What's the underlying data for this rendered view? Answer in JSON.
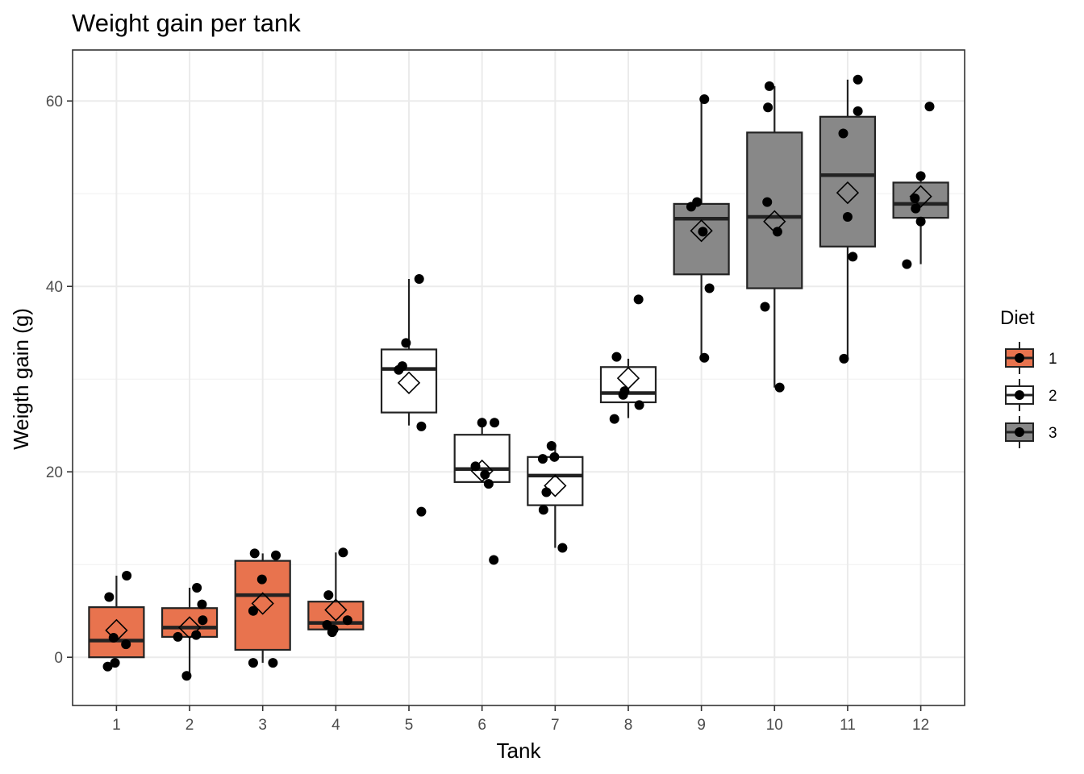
{
  "chart_data": {
    "type": "boxplot",
    "title": "Weight gain per tank",
    "xlabel": "Tank",
    "ylabel": "Weigth gain (g)",
    "ylim": [
      -5.2,
      65.5
    ],
    "yticks": [
      0,
      20,
      40,
      60
    ],
    "grid": true,
    "legend": {
      "title": "Diet",
      "position": "right",
      "entries": [
        {
          "label": "1",
          "fill": "#E8734E"
        },
        {
          "label": "2",
          "fill": "#FFFFFF"
        },
        {
          "label": "3",
          "fill": "#888888"
        }
      ]
    },
    "boxes": [
      {
        "tank": "1",
        "diet": "1",
        "lower": 0.0,
        "q1": 0.0,
        "median": 1.8,
        "q3": 5.4,
        "upper": 8.8,
        "mean": 2.9,
        "points": [
          [
            -0.12,
            -1.0
          ],
          [
            -0.02,
            -0.6
          ],
          [
            -0.04,
            2.1
          ],
          [
            0.13,
            1.4
          ],
          [
            0.14,
            8.8
          ],
          [
            -0.1,
            6.5
          ]
        ]
      },
      {
        "tank": "2",
        "diet": "1",
        "lower": -2.0,
        "q1": 2.2,
        "median": 3.2,
        "q3": 5.3,
        "upper": 7.5,
        "mean": 3.2,
        "points": [
          [
            -0.04,
            -2.0
          ],
          [
            -0.16,
            2.2
          ],
          [
            0.09,
            2.4
          ],
          [
            0.18,
            4.0
          ],
          [
            0.17,
            5.7
          ],
          [
            0.1,
            7.5
          ]
        ]
      },
      {
        "tank": "3",
        "diet": "1",
        "lower": -0.6,
        "q1": 0.8,
        "median": 6.7,
        "q3": 10.4,
        "upper": 11.2,
        "mean": 5.8,
        "points": [
          [
            -0.13,
            -0.6
          ],
          [
            0.14,
            -0.6
          ],
          [
            -0.13,
            5.0
          ],
          [
            -0.01,
            8.4
          ],
          [
            -0.11,
            11.2
          ],
          [
            0.18,
            11.0
          ]
        ]
      },
      {
        "tank": "4",
        "diet": "1",
        "lower": 2.7,
        "q1": 3.0,
        "median": 3.7,
        "q3": 6.0,
        "upper": 11.3,
        "mean": 5.1,
        "points": [
          [
            -0.05,
            2.7
          ],
          [
            -0.03,
            3.0
          ],
          [
            -0.12,
            3.5
          ],
          [
            0.16,
            4.0
          ],
          [
            -0.1,
            6.7
          ],
          [
            0.1,
            11.3
          ]
        ]
      },
      {
        "tank": "5",
        "diet": "2",
        "lower": 25.0,
        "q1": 26.4,
        "median": 31.1,
        "q3": 33.2,
        "upper": 40.8,
        "mean": 29.6,
        "points": [
          [
            0.17,
            15.7
          ],
          [
            0.17,
            24.9
          ],
          [
            -0.14,
            31.0
          ],
          [
            -0.09,
            31.4
          ],
          [
            -0.04,
            33.9
          ],
          [
            0.14,
            40.8
          ]
        ]
      },
      {
        "tank": "6",
        "diet": "2",
        "lower": 18.9,
        "q1": 18.9,
        "median": 20.3,
        "q3": 24.0,
        "upper": 25.3,
        "mean": 20.1,
        "points": [
          [
            0.16,
            10.5
          ],
          [
            0.09,
            18.7
          ],
          [
            0.04,
            19.7
          ],
          [
            -0.09,
            20.6
          ],
          [
            0.0,
            25.3
          ],
          [
            0.17,
            25.3
          ]
        ]
      },
      {
        "tank": "7",
        "diet": "2",
        "lower": 11.8,
        "q1": 16.4,
        "median": 19.6,
        "q3": 21.6,
        "upper": 22.8,
        "mean": 18.5,
        "points": [
          [
            0.1,
            11.8
          ],
          [
            -0.16,
            15.9
          ],
          [
            -0.12,
            17.8
          ],
          [
            -0.17,
            21.4
          ],
          [
            -0.01,
            21.6
          ],
          [
            -0.05,
            22.8
          ]
        ]
      },
      {
        "tank": "8",
        "diet": "2",
        "lower": 25.8,
        "q1": 27.5,
        "median": 28.5,
        "q3": 31.3,
        "upper": 32.2,
        "mean": 30.1,
        "points": [
          [
            -0.19,
            25.7
          ],
          [
            0.15,
            27.2
          ],
          [
            -0.07,
            28.3
          ],
          [
            -0.05,
            28.7
          ],
          [
            -0.16,
            32.4
          ],
          [
            0.14,
            38.6
          ]
        ]
      },
      {
        "tank": "9",
        "diet": "3",
        "lower": 32.3,
        "q1": 41.3,
        "median": 47.3,
        "q3": 48.9,
        "upper": 60.2,
        "mean": 46.0,
        "points": [
          [
            0.04,
            32.3
          ],
          [
            0.11,
            39.8
          ],
          [
            0.02,
            45.9
          ],
          [
            -0.14,
            48.6
          ],
          [
            -0.06,
            49.1
          ],
          [
            0.04,
            60.2
          ]
        ]
      },
      {
        "tank": "10",
        "diet": "3",
        "lower": 29.1,
        "q1": 39.8,
        "median": 47.5,
        "q3": 56.6,
        "upper": 61.6,
        "mean": 47.0,
        "points": [
          [
            0.07,
            29.1
          ],
          [
            -0.13,
            37.8
          ],
          [
            0.04,
            45.9
          ],
          [
            -0.1,
            49.1
          ],
          [
            -0.09,
            59.3
          ],
          [
            -0.07,
            61.6
          ]
        ]
      },
      {
        "tank": "11",
        "diet": "3",
        "lower": 32.2,
        "q1": 44.3,
        "median": 52.0,
        "q3": 58.3,
        "upper": 62.3,
        "mean": 50.1,
        "points": [
          [
            -0.05,
            32.2
          ],
          [
            0.07,
            43.2
          ],
          [
            0.0,
            47.5
          ],
          [
            -0.06,
            56.5
          ],
          [
            0.14,
            58.9
          ],
          [
            0.14,
            62.3
          ]
        ]
      },
      {
        "tank": "12",
        "diet": "3",
        "lower": 42.4,
        "q1": 47.4,
        "median": 48.9,
        "q3": 51.2,
        "upper": 51.9,
        "mean": 49.7,
        "points": [
          [
            -0.19,
            42.4
          ],
          [
            0.0,
            47.0
          ],
          [
            -0.07,
            48.4
          ],
          [
            -0.08,
            49.5
          ],
          [
            0.0,
            51.9
          ],
          [
            0.12,
            59.4
          ]
        ]
      }
    ]
  }
}
